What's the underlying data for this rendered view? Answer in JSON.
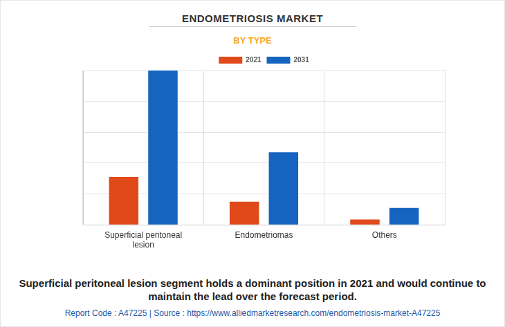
{
  "chart_data": {
    "type": "bar",
    "title": "ENDOMETRIOSIS MARKET",
    "subtitle": "BY TYPE",
    "annotations": [
      "Superficial peritoneal lesion segment holds a dominant position in 2021 and would continue to maintain the lead over the forecast period.",
      "Report Code : A47225  |  Source : https://www.alliedmarketresearch.com/endometriosis-market-A47225"
    ],
    "categories": [
      "Superficial peritoneal lesion",
      "Endometriomas",
      "Others"
    ],
    "series": [
      {
        "name": "2021",
        "color": "#e04a1b",
        "values": [
          31,
          15,
          3.5
        ]
      },
      {
        "name": "2031",
        "color": "#1565c0",
        "values": [
          100,
          47,
          11
        ]
      }
    ],
    "ylim": [
      0,
      100
    ],
    "yticks": [
      0,
      20,
      40,
      60,
      80,
      100
    ],
    "grid": true,
    "legend": "top",
    "tick_labels": "x"
  }
}
